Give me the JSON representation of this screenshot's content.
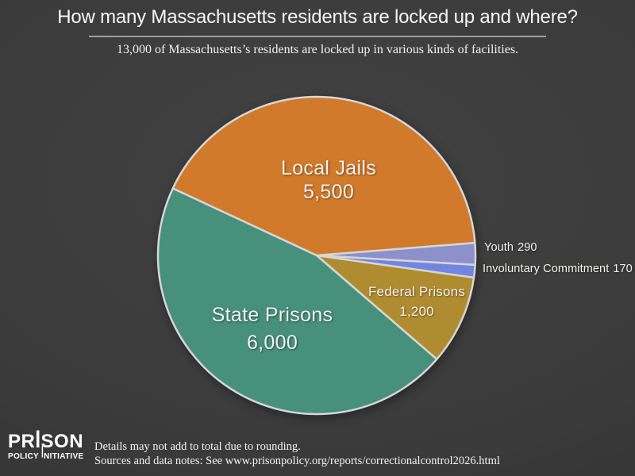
{
  "header": {
    "title": "How many Massachusetts residents are locked up and where?",
    "subtitle": "13,000 of Massachusetts’s residents are locked up in various kinds of facilities."
  },
  "chart_data": {
    "type": "pie",
    "title": "How many Massachusetts residents are locked up and where?",
    "total": 13000,
    "total_label": "13,000",
    "start_angle_deg": 155,
    "direction": "clockwise",
    "stroke_color": "#d6d6d6",
    "slices": [
      {
        "name": "Local Jails",
        "value": 5500,
        "value_label": "5,500",
        "color": "#d17a2c",
        "label_position": "inside"
      },
      {
        "name": "Youth",
        "value": 290,
        "value_label": "290",
        "color": "#8e90c9",
        "label_position": "outside"
      },
      {
        "name": "Involuntary Commitment",
        "value": 170,
        "value_label": "170",
        "color": "#7285e2",
        "label_position": "outside"
      },
      {
        "name": "Federal Prisons",
        "value": 1200,
        "value_label": "1,200",
        "color": "#b08c30",
        "label_position": "inside"
      },
      {
        "name": "State Prisons",
        "value": 6000,
        "value_label": "6,000",
        "color": "#46907c",
        "label_position": "inside"
      }
    ]
  },
  "footer": {
    "logo": {
      "line1_pre": "PR",
      "line1_bar": "I",
      "line1_post": "SON",
      "line2_pre": "POLICY",
      "line2_bar": "I",
      "line2_post": "NITIATIVE"
    },
    "note1": "Details may not add to total due to rounding.",
    "note2": "Sources and data notes: See www.prisonpolicy.org/reports/correctionalcontrol2026.html"
  }
}
